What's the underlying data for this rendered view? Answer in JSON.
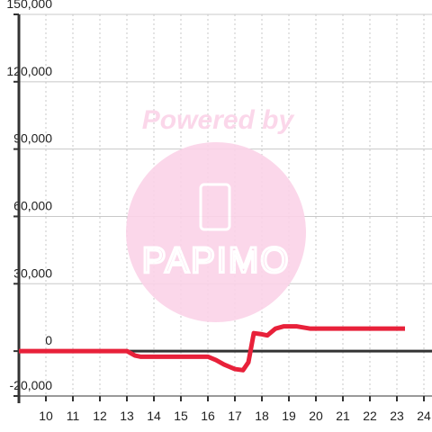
{
  "chart_data": {
    "type": "line",
    "watermark": {
      "top": "Powered by",
      "bottom": "PAPIMO"
    },
    "x": [
      9,
      12,
      13,
      13.3,
      13.5,
      16,
      16.3,
      16.6,
      17,
      17.3,
      17.5,
      17.7,
      18,
      18.2,
      18.5,
      18.8,
      19.3,
      19.8,
      23.3
    ],
    "series": [
      {
        "color": "#e8213a",
        "values": [
          0,
          0,
          0,
          -2000,
          -2500,
          -2500,
          -4000,
          -6000,
          -8000,
          -8500,
          -5000,
          8000,
          7500,
          7000,
          10000,
          11000,
          11000,
          10000,
          10000
        ]
      }
    ],
    "xlim": [
      9,
      24.3
    ],
    "xticks": [
      10,
      11,
      12,
      13,
      14,
      15,
      16,
      17,
      18,
      19,
      20,
      21,
      22,
      23,
      24
    ],
    "ylim": [
      -20000,
      150000
    ],
    "yticks": [
      {
        "value": -20000,
        "label": "-20,000"
      },
      0,
      {
        "value": 30000,
        "label": "30,000"
      },
      {
        "value": 60000,
        "label": "60,000"
      },
      {
        "value": 90000,
        "label": "90,000"
      },
      {
        "value": 120000,
        "label": "120,000"
      },
      {
        "value": 150000,
        "label": "150,000"
      }
    ],
    "grid": true
  }
}
